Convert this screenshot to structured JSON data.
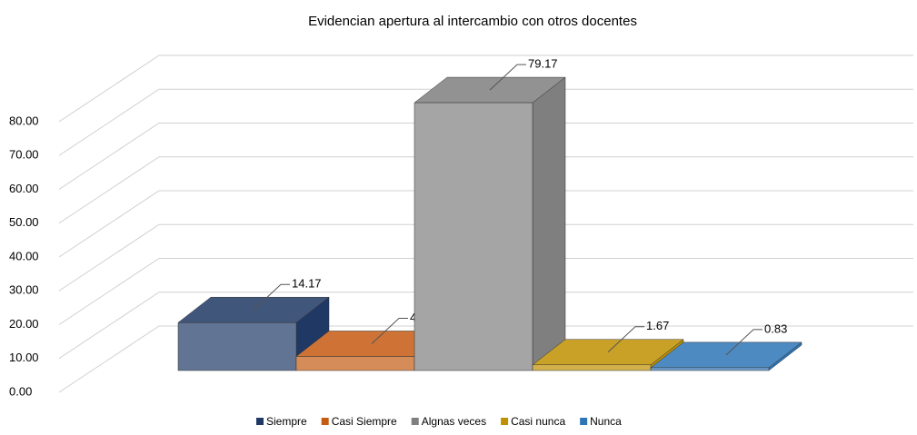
{
  "chart_data": {
    "type": "bar",
    "title": "Evidencian apertura al intercambio con otros docentes",
    "categories": [
      "Siempre",
      "Casi Siempre",
      "Algnas veces",
      "Casi nunca",
      "Nunca"
    ],
    "values": [
      14.17,
      4.17,
      79.17,
      1.67,
      0.83
    ],
    "colors": [
      "#1f3864",
      "#c55a11",
      "#7f7f7f",
      "#bf9000",
      "#2e75b6"
    ],
    "ylim": [
      0,
      80
    ],
    "yticks": [
      {
        "value": 0,
        "label": "0.00"
      },
      {
        "value": 10,
        "label": "10.00"
      },
      {
        "value": 20,
        "label": "20.00"
      },
      {
        "value": 30,
        "label": "30.00"
      },
      {
        "value": 40,
        "label": "40.00"
      },
      {
        "value": 50,
        "label": "50.00"
      },
      {
        "value": 60,
        "label": "60.00"
      },
      {
        "value": 70,
        "label": "70.00"
      },
      {
        "value": 80,
        "label": "80.00"
      }
    ],
    "grid": true,
    "legend": "bottom"
  }
}
